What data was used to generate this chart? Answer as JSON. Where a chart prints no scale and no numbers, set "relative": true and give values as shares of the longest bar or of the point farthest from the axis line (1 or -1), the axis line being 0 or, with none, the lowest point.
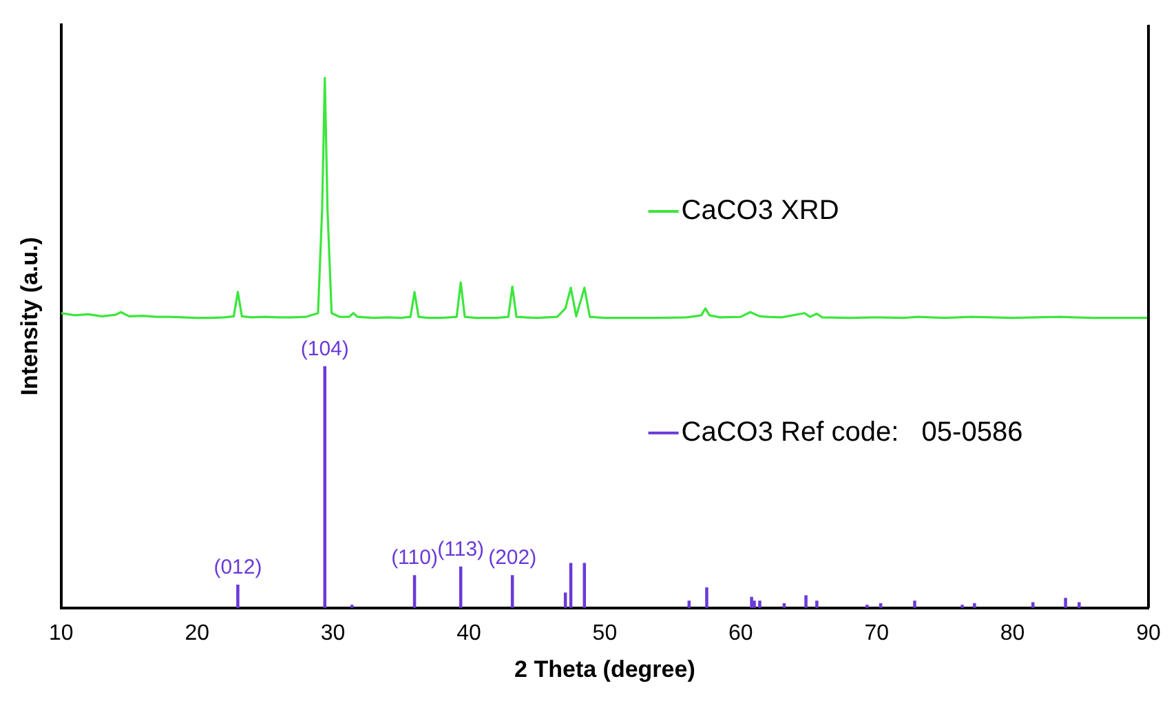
{
  "chart_data": {
    "type": "line",
    "xlabel": "2 Theta (degree)",
    "ylabel": "Intensity (a.u.)",
    "relative": true,
    "xlim": [
      10,
      90
    ],
    "xticks": [
      10,
      20,
      30,
      40,
      50,
      60,
      70,
      80,
      90
    ],
    "grid": false,
    "legend": "right",
    "marker": "none",
    "series": [
      {
        "name": "CaCO3 XRD",
        "color": "#3ce63c",
        "x": [
          10,
          11,
          12,
          13,
          14,
          14.4,
          15,
          16,
          17,
          18,
          19,
          20,
          21,
          22,
          22.7,
          23.0,
          23.3,
          24,
          25,
          26,
          27,
          28,
          28.9,
          29.2,
          29.4,
          29.6,
          29.9,
          30.5,
          31.2,
          31.5,
          31.8,
          33,
          34,
          35,
          35.7,
          36.0,
          36.3,
          37,
          38,
          39.1,
          39.4,
          39.7,
          40.5,
          42,
          42.9,
          43.2,
          43.5,
          45,
          46.5,
          47.1,
          47.5,
          47.9,
          48.5,
          48.9,
          50,
          52,
          54,
          56,
          56.6,
          57.1,
          57.4,
          57.7,
          58.5,
          60,
          60.7,
          61.4,
          62,
          63,
          64.7,
          65.1,
          65.6,
          66,
          68,
          70,
          72,
          73,
          75,
          77,
          80,
          83.5,
          84.5,
          86,
          88,
          90
        ],
        "values": [
          0.556,
          0.552,
          0.554,
          0.55,
          0.553,
          0.558,
          0.55,
          0.551,
          0.549,
          0.549,
          0.548,
          0.547,
          0.547,
          0.548,
          0.55,
          0.596,
          0.55,
          0.548,
          0.549,
          0.548,
          0.548,
          0.549,
          0.556,
          0.75,
          1.0,
          0.75,
          0.556,
          0.549,
          0.549,
          0.556,
          0.549,
          0.547,
          0.548,
          0.547,
          0.549,
          0.596,
          0.549,
          0.547,
          0.547,
          0.549,
          0.614,
          0.549,
          0.547,
          0.547,
          0.549,
          0.606,
          0.549,
          0.547,
          0.549,
          0.565,
          0.604,
          0.55,
          0.604,
          0.549,
          0.547,
          0.547,
          0.547,
          0.548,
          0.55,
          0.552,
          0.565,
          0.552,
          0.548,
          0.549,
          0.558,
          0.55,
          0.549,
          0.548,
          0.556,
          0.549,
          0.555,
          0.548,
          0.547,
          0.548,
          0.547,
          0.549,
          0.547,
          0.549,
          0.547,
          0.549,
          0.548,
          0.547,
          0.547,
          0.547
        ]
      },
      {
        "name": "CaCO3 Ref code:   05-0586",
        "type": "bar",
        "color": "#6a3ad8",
        "x": [
          23.0,
          29.4,
          31.4,
          36.0,
          39.4,
          43.2,
          47.1,
          47.5,
          48.5,
          56.2,
          57.5,
          60.8,
          61.0,
          61.4,
          63.2,
          64.8,
          65.6,
          69.3,
          70.3,
          72.8,
          76.3,
          77.2,
          81.5,
          83.9,
          84.9
        ],
        "values": [
          0.043,
          0.455,
          0.005,
          0.061,
          0.077,
          0.061,
          0.028,
          0.084,
          0.084,
          0.013,
          0.038,
          0.02,
          0.013,
          0.013,
          0.008,
          0.023,
          0.013,
          0.005,
          0.008,
          0.013,
          0.005,
          0.008,
          0.01,
          0.018,
          0.01
        ]
      }
    ],
    "annotations": [
      {
        "text": "(012)",
        "x": 23.0,
        "y": 0.043
      },
      {
        "text": "(104)",
        "x": 29.4,
        "y": 0.455
      },
      {
        "text": "(110)",
        "x": 36.0,
        "y": 0.061
      },
      {
        "text": "(113)",
        "x": 39.4,
        "y": 0.077
      },
      {
        "text": "(202)",
        "x": 43.2,
        "y": 0.061
      }
    ]
  }
}
